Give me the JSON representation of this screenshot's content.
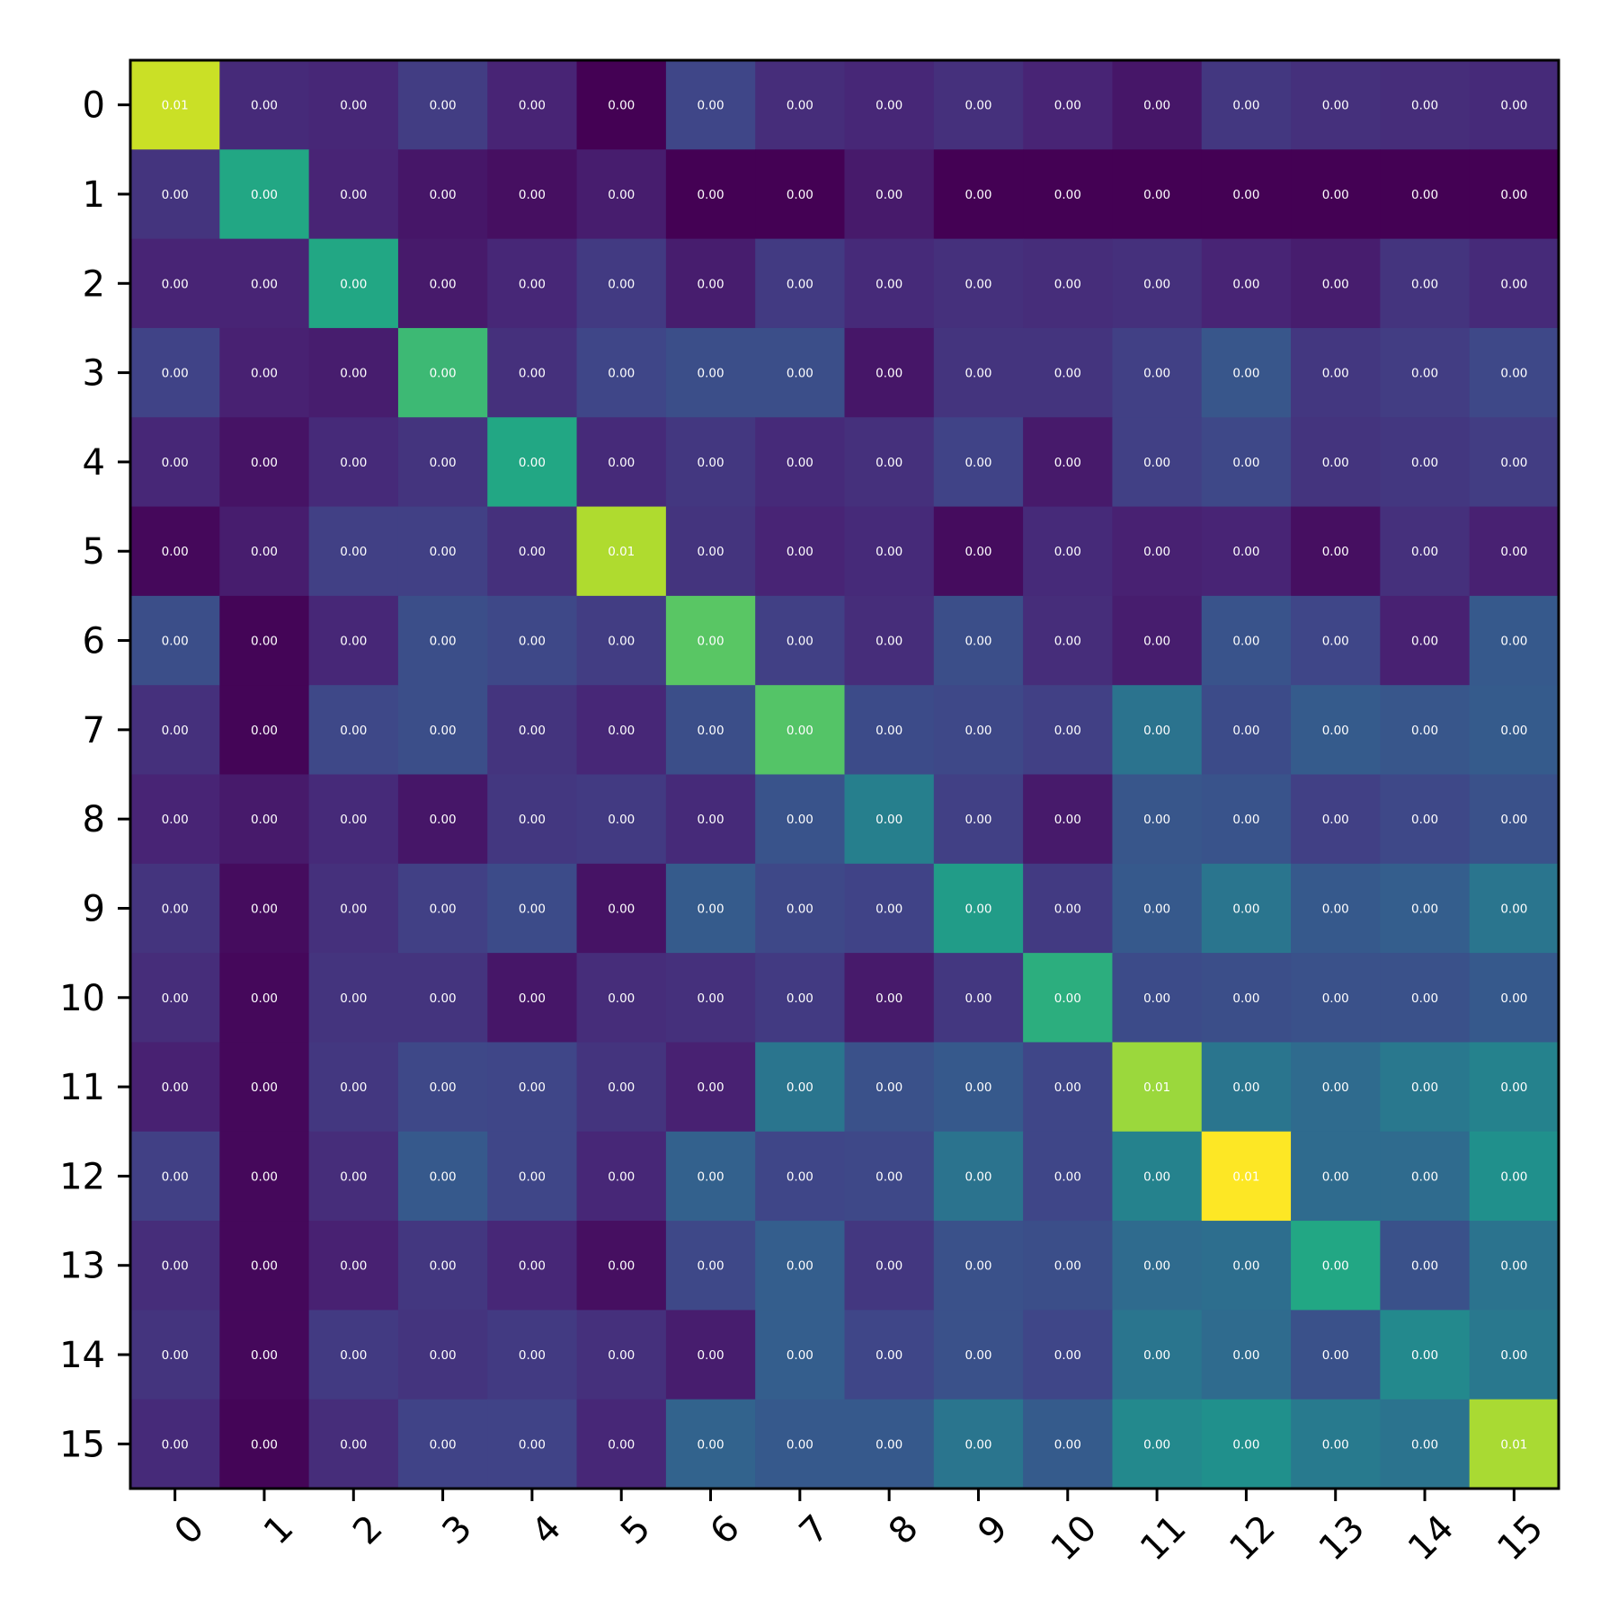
{
  "chart_data": {
    "type": "heatmap",
    "title": "",
    "xlabel": "",
    "ylabel": "",
    "colormap": "viridis",
    "color_scale": [
      0,
      1
    ],
    "grid": false,
    "legend": "none",
    "x_tick_labels": [
      "0",
      "1",
      "2",
      "3",
      "4",
      "5",
      "6",
      "7",
      "8",
      "9",
      "10",
      "11",
      "12",
      "13",
      "14",
      "15"
    ],
    "y_tick_labels": [
      "0",
      "1",
      "2",
      "3",
      "4",
      "5",
      "6",
      "7",
      "8",
      "9",
      "10",
      "11",
      "12",
      "13",
      "14",
      "15"
    ],
    "x_tick_rotation_deg": 45,
    "cell_labels": [
      [
        "0.01",
        "0.00",
        "0.00",
        "0.00",
        "0.00",
        "0.00",
        "0.00",
        "0.00",
        "0.00",
        "0.00",
        "0.00",
        "0.00",
        "0.00",
        "0.00",
        "0.00",
        "0.00"
      ],
      [
        "0.00",
        "0.00",
        "0.00",
        "0.00",
        "0.00",
        "0.00",
        "0.00",
        "0.00",
        "0.00",
        "0.00",
        "0.00",
        "0.00",
        "0.00",
        "0.00",
        "0.00",
        "0.00"
      ],
      [
        "0.00",
        "0.00",
        "0.00",
        "0.00",
        "0.00",
        "0.00",
        "0.00",
        "0.00",
        "0.00",
        "0.00",
        "0.00",
        "0.00",
        "0.00",
        "0.00",
        "0.00",
        "0.00"
      ],
      [
        "0.00",
        "0.00",
        "0.00",
        "0.00",
        "0.00",
        "0.00",
        "0.00",
        "0.00",
        "0.00",
        "0.00",
        "0.00",
        "0.00",
        "0.00",
        "0.00",
        "0.00",
        "0.00"
      ],
      [
        "0.00",
        "0.00",
        "0.00",
        "0.00",
        "0.00",
        "0.00",
        "0.00",
        "0.00",
        "0.00",
        "0.00",
        "0.00",
        "0.00",
        "0.00",
        "0.00",
        "0.00",
        "0.00"
      ],
      [
        "0.00",
        "0.00",
        "0.00",
        "0.00",
        "0.00",
        "0.01",
        "0.00",
        "0.00",
        "0.00",
        "0.00",
        "0.00",
        "0.00",
        "0.00",
        "0.00",
        "0.00",
        "0.00"
      ],
      [
        "0.00",
        "0.00",
        "0.00",
        "0.00",
        "0.00",
        "0.00",
        "0.00",
        "0.00",
        "0.00",
        "0.00",
        "0.00",
        "0.00",
        "0.00",
        "0.00",
        "0.00",
        "0.00"
      ],
      [
        "0.00",
        "0.00",
        "0.00",
        "0.00",
        "0.00",
        "0.00",
        "0.00",
        "0.00",
        "0.00",
        "0.00",
        "0.00",
        "0.00",
        "0.00",
        "0.00",
        "0.00",
        "0.00"
      ],
      [
        "0.00",
        "0.00",
        "0.00",
        "0.00",
        "0.00",
        "0.00",
        "0.00",
        "0.00",
        "0.00",
        "0.00",
        "0.00",
        "0.00",
        "0.00",
        "0.00",
        "0.00",
        "0.00"
      ],
      [
        "0.00",
        "0.00",
        "0.00",
        "0.00",
        "0.00",
        "0.00",
        "0.00",
        "0.00",
        "0.00",
        "0.00",
        "0.00",
        "0.00",
        "0.00",
        "0.00",
        "0.00",
        "0.00"
      ],
      [
        "0.00",
        "0.00",
        "0.00",
        "0.00",
        "0.00",
        "0.00",
        "0.00",
        "0.00",
        "0.00",
        "0.00",
        "0.00",
        "0.00",
        "0.00",
        "0.00",
        "0.00",
        "0.00"
      ],
      [
        "0.00",
        "0.00",
        "0.00",
        "0.00",
        "0.00",
        "0.00",
        "0.00",
        "0.00",
        "0.00",
        "0.00",
        "0.00",
        "0.01",
        "0.00",
        "0.00",
        "0.00",
        "0.00"
      ],
      [
        "0.00",
        "0.00",
        "0.00",
        "0.00",
        "0.00",
        "0.00",
        "0.00",
        "0.00",
        "0.00",
        "0.00",
        "0.00",
        "0.00",
        "0.01",
        "0.00",
        "0.00",
        "0.00"
      ],
      [
        "0.00",
        "0.00",
        "0.00",
        "0.00",
        "0.00",
        "0.00",
        "0.00",
        "0.00",
        "0.00",
        "0.00",
        "0.00",
        "0.00",
        "0.00",
        "0.00",
        "0.00",
        "0.00"
      ],
      [
        "0.00",
        "0.00",
        "0.00",
        "0.00",
        "0.00",
        "0.00",
        "0.00",
        "0.00",
        "0.00",
        "0.00",
        "0.00",
        "0.00",
        "0.00",
        "0.00",
        "0.00",
        "0.00"
      ],
      [
        "0.00",
        "0.00",
        "0.00",
        "0.00",
        "0.00",
        "0.00",
        "0.00",
        "0.00",
        "0.00",
        "0.00",
        "0.00",
        "0.00",
        "0.00",
        "0.00",
        "0.00",
        "0.01"
      ]
    ],
    "color_levels": [
      [
        0.92,
        0.12,
        0.11,
        0.18,
        0.1,
        0.0,
        0.21,
        0.13,
        0.11,
        0.14,
        0.1,
        0.06,
        0.16,
        0.14,
        0.13,
        0.12
      ],
      [
        0.15,
        0.6,
        0.1,
        0.06,
        0.04,
        0.08,
        0.0,
        0.0,
        0.07,
        0.0,
        0.0,
        0.0,
        0.0,
        0.0,
        0.0,
        0.0
      ],
      [
        0.1,
        0.1,
        0.6,
        0.07,
        0.11,
        0.17,
        0.08,
        0.17,
        0.12,
        0.14,
        0.13,
        0.14,
        0.1,
        0.08,
        0.15,
        0.12
      ],
      [
        0.2,
        0.09,
        0.08,
        0.68,
        0.14,
        0.21,
        0.24,
        0.24,
        0.06,
        0.15,
        0.15,
        0.19,
        0.27,
        0.16,
        0.18,
        0.22
      ],
      [
        0.11,
        0.05,
        0.12,
        0.15,
        0.6,
        0.12,
        0.16,
        0.12,
        0.14,
        0.2,
        0.07,
        0.19,
        0.22,
        0.15,
        0.16,
        0.18
      ],
      [
        0.02,
        0.08,
        0.19,
        0.19,
        0.14,
        0.88,
        0.15,
        0.1,
        0.12,
        0.03,
        0.12,
        0.09,
        0.1,
        0.04,
        0.14,
        0.09
      ],
      [
        0.24,
        0.01,
        0.11,
        0.24,
        0.22,
        0.18,
        0.74,
        0.19,
        0.13,
        0.24,
        0.13,
        0.08,
        0.26,
        0.21,
        0.09,
        0.28
      ],
      [
        0.14,
        0.01,
        0.22,
        0.24,
        0.15,
        0.11,
        0.24,
        0.73,
        0.23,
        0.22,
        0.19,
        0.38,
        0.23,
        0.29,
        0.27,
        0.29
      ],
      [
        0.1,
        0.07,
        0.12,
        0.06,
        0.16,
        0.17,
        0.12,
        0.26,
        0.43,
        0.19,
        0.07,
        0.27,
        0.26,
        0.19,
        0.22,
        0.25
      ],
      [
        0.15,
        0.03,
        0.14,
        0.19,
        0.23,
        0.05,
        0.29,
        0.22,
        0.2,
        0.55,
        0.17,
        0.28,
        0.39,
        0.28,
        0.3,
        0.39
      ],
      [
        0.13,
        0.02,
        0.15,
        0.15,
        0.06,
        0.13,
        0.14,
        0.17,
        0.07,
        0.16,
        0.63,
        0.23,
        0.24,
        0.25,
        0.25,
        0.28
      ],
      [
        0.09,
        0.02,
        0.16,
        0.22,
        0.21,
        0.15,
        0.09,
        0.39,
        0.25,
        0.28,
        0.21,
        0.85,
        0.39,
        0.35,
        0.4,
        0.44
      ],
      [
        0.19,
        0.02,
        0.13,
        0.28,
        0.21,
        0.11,
        0.31,
        0.21,
        0.22,
        0.38,
        0.21,
        0.44,
        1.0,
        0.35,
        0.35,
        0.5
      ],
      [
        0.13,
        0.02,
        0.09,
        0.16,
        0.11,
        0.04,
        0.22,
        0.3,
        0.16,
        0.25,
        0.24,
        0.35,
        0.36,
        0.6,
        0.25,
        0.38
      ],
      [
        0.15,
        0.02,
        0.17,
        0.15,
        0.17,
        0.14,
        0.08,
        0.3,
        0.21,
        0.25,
        0.21,
        0.39,
        0.35,
        0.25,
        0.47,
        0.4
      ],
      [
        0.12,
        0.01,
        0.13,
        0.2,
        0.2,
        0.11,
        0.32,
        0.28,
        0.28,
        0.39,
        0.29,
        0.47,
        0.5,
        0.41,
        0.38,
        0.87
      ]
    ]
  }
}
